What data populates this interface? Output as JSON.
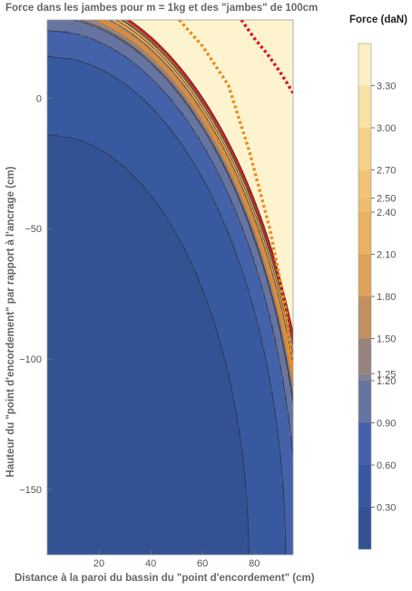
{
  "chart_data": {
    "type": "contour",
    "title": "Force dans les jambes pour m = 1kg et des \"jambes\" de 100cm",
    "xlabel": "Distance à la paroi du bassin du \"point d'encordement\" (cm)",
    "ylabel": "Hauteur du \"point d'encordement\" par rapport à l'ancrage (cm)",
    "xlim": [
      0,
      95
    ],
    "ylim": [
      -175,
      30
    ],
    "x_ticks": [
      20,
      40,
      60,
      80
    ],
    "y_ticks": [
      0,
      -50,
      -100,
      -150
    ],
    "legend": {
      "title": "Force (daN)",
      "placement": "right",
      "levels": [
        "0.30",
        "0.60",
        "0.90",
        "1.20",
        "1.25",
        "1.50",
        "1.80",
        "2.10",
        "2.40",
        "2.50",
        "2.70",
        "3.00",
        "3.30"
      ],
      "max": 3.6
    },
    "contour_levels": [
      0.3,
      0.6,
      0.9,
      1.2,
      1.25,
      1.5,
      1.8,
      2.1,
      2.4,
      2.5,
      2.7,
      3.0,
      3.3
    ],
    "highlight_lines": [
      {
        "level": 1.5,
        "style": "solid",
        "color": "#f08a1c"
      },
      {
        "level": 3.0,
        "style": "solid",
        "color": "#e0141e"
      }
    ],
    "dotted_lines": [
      {
        "color": "#f08a1c",
        "points": [
          [
            51,
            30
          ],
          [
            60,
            20
          ],
          [
            70,
            5
          ],
          [
            78,
            -20
          ],
          [
            86,
            -50
          ],
          [
            92,
            -80
          ],
          [
            95,
            -105
          ]
        ]
      },
      {
        "color": "#e0141e",
        "points": [
          [
            75,
            30
          ],
          [
            80,
            23
          ],
          [
            85,
            17
          ],
          [
            90,
            10
          ],
          [
            95,
            2
          ]
        ]
      }
    ],
    "colors": {
      "low": "#3a5b9c",
      "mid": "#7a7e90",
      "high": "#e9a14e",
      "top": "#fdf6d4"
    }
  }
}
